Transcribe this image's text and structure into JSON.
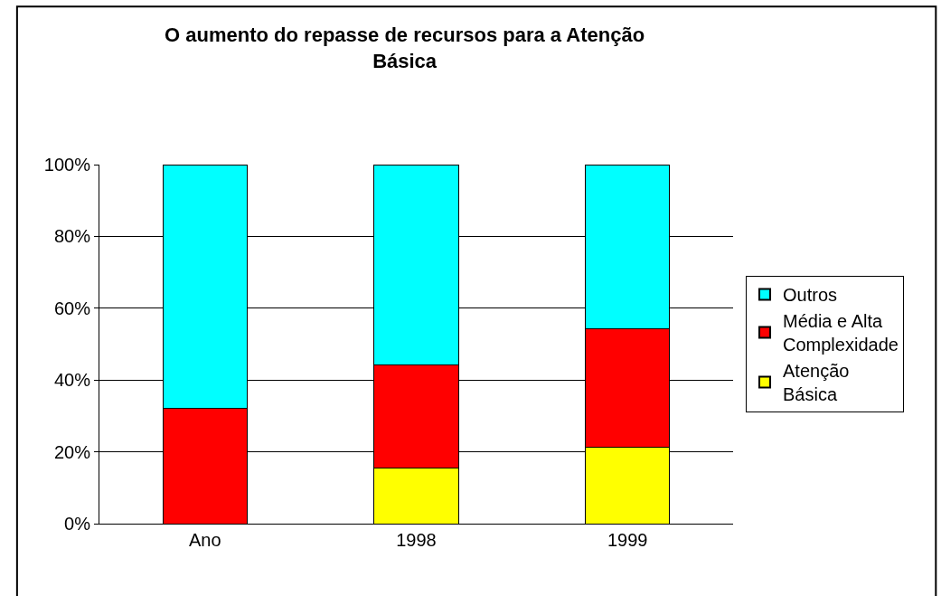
{
  "chart_data": {
    "type": "bar",
    "title": "O aumento do repasse de recursos para a Atenção Básica",
    "categories": [
      "Ano",
      "1998",
      "1999"
    ],
    "stacked": true,
    "series": [
      {
        "name": "Atenção Básica",
        "color": "#ffff00",
        "values": [
          0,
          15.5,
          21.4
        ]
      },
      {
        "name": "Média e Alta Complexidade",
        "color": "#ff0000",
        "values": [
          32.2,
          28.8,
          32.8
        ]
      },
      {
        "name": "Outros",
        "color": "#00ffff",
        "values": [
          67.8,
          55.7,
          45.8
        ]
      }
    ],
    "ylim": [
      0,
      100
    ],
    "yticks": [
      {
        "value": 0,
        "label": "0%"
      },
      {
        "value": 20,
        "label": "20%"
      },
      {
        "value": 40,
        "label": "40%"
      },
      {
        "value": 60,
        "label": "60%"
      },
      {
        "value": 80,
        "label": "80%"
      },
      {
        "value": 100,
        "label": "100%"
      }
    ],
    "grid": "y",
    "legend": "right"
  }
}
